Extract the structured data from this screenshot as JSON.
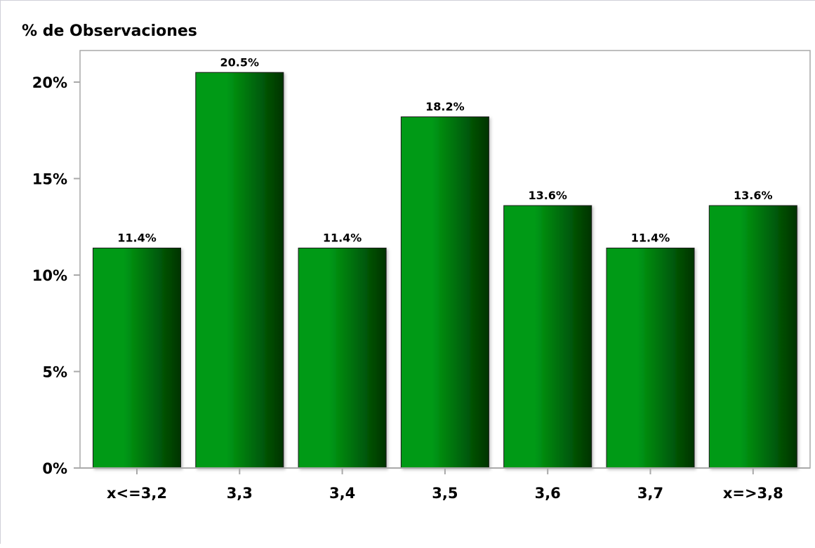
{
  "chart_data": {
    "type": "bar",
    "title": "",
    "ylabel": "% de Observaciones",
    "xlabel": "",
    "categories": [
      "x<=3,2",
      "3,3",
      "3,4",
      "3,5",
      "3,6",
      "3,7",
      "x=>3,8"
    ],
    "values": [
      11.4,
      20.5,
      11.4,
      18.2,
      13.6,
      11.4,
      13.6
    ],
    "value_labels": [
      "11.4%",
      "20.5%",
      "11.4%",
      "18.2%",
      "13.6%",
      "11.4%",
      "13.6%"
    ],
    "yticks": [
      0,
      5,
      10,
      15,
      20
    ],
    "ytick_labels": [
      "0%",
      "5%",
      "10%",
      "15%",
      "20%"
    ],
    "ylim": [
      0,
      22
    ],
    "grid": false,
    "legend": "none",
    "colors": {
      "bar_light": "#009a14",
      "bar_dark": "#003300",
      "axis": "#a9a9a9"
    }
  }
}
